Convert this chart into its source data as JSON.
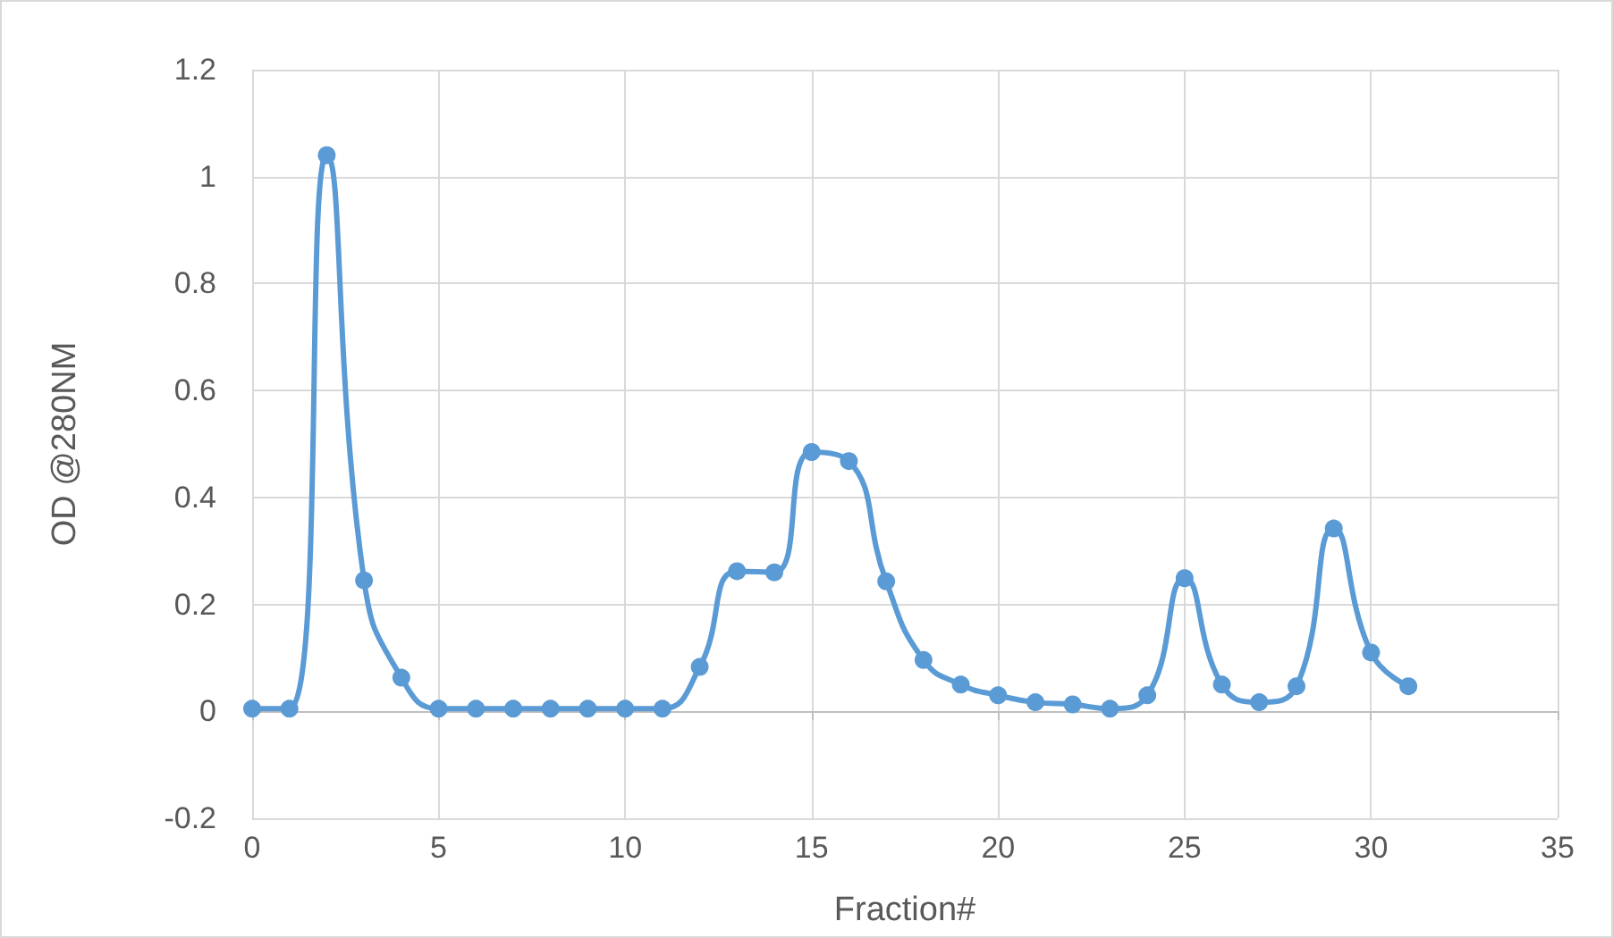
{
  "chart_data": {
    "type": "line",
    "xlabel": "Fraction#",
    "ylabel": "OD @280NM",
    "x": [
      0,
      1,
      2,
      3,
      4,
      5,
      6,
      7,
      8,
      9,
      10,
      11,
      12,
      13,
      14,
      15,
      16,
      17,
      18,
      19,
      20,
      21,
      22,
      23,
      24,
      25,
      26,
      27,
      28,
      29,
      30,
      31
    ],
    "series": [
      {
        "color": "#5b9bd5",
        "values": [
          0.005,
          0.005,
          1.04,
          0.245,
          0.063,
          0.005,
          0.005,
          0.005,
          0.005,
          0.005,
          0.005,
          0.005,
          0.083,
          0.262,
          0.26,
          0.485,
          0.468,
          0.243,
          0.096,
          0.05,
          0.03,
          0.017,
          0.013,
          0.005,
          0.03,
          0.249,
          0.05,
          0.017,
          0.047,
          0.342,
          0.11,
          0.047
        ]
      }
    ],
    "xlim": [
      0,
      35
    ],
    "xticks": [
      0,
      5,
      10,
      15,
      20,
      25,
      30,
      35
    ],
    "ylim": [
      -0.2,
      1.2
    ],
    "yticks": [
      -0.2,
      0,
      0.2,
      0.4,
      0.6,
      0.8,
      1,
      1.2
    ],
    "grid": true,
    "marker": "circle",
    "line_style": "solid"
  }
}
